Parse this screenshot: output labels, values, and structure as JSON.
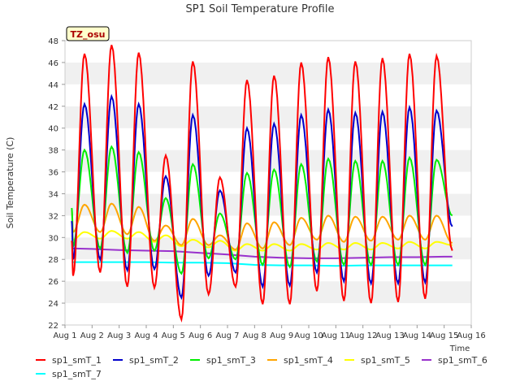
{
  "chart_data": {
    "type": "line",
    "title": "SP1 Soil Temperature Profile",
    "xlabel": "Time",
    "ylabel": "Soil Temperature (C)",
    "ylim": [
      22,
      48
    ],
    "xlim": [
      1,
      16
    ],
    "yticks": [
      22,
      24,
      26,
      28,
      30,
      32,
      34,
      36,
      38,
      40,
      42,
      44,
      46,
      48
    ],
    "xticks": [
      1,
      2,
      3,
      4,
      5,
      6,
      7,
      8,
      9,
      10,
      11,
      12,
      13,
      14,
      15,
      16
    ],
    "xtick_labels": [
      "Aug 1",
      "Aug 2",
      "Aug 3",
      "Aug 4",
      "Aug 5",
      "Aug 6",
      "Aug 7",
      "Aug 8",
      "Aug 9",
      "Aug 10",
      "Aug 11",
      "Aug 12",
      "Aug 13",
      "Aug 14",
      "Aug 15",
      "Aug 16"
    ],
    "annotation": "TZ_osu",
    "legend_position": "bottom",
    "grid": "alternating horizontal bands",
    "series": [
      {
        "name": "sp1_smT_1",
        "color": "#ff0000",
        "min": [
          26.5,
          26.8,
          25.5,
          25.4,
          22.5,
          24.8,
          25.5,
          23.9,
          23.9,
          25.1,
          24.2,
          24.0,
          24.1,
          24.4
        ],
        "max": [
          46.8,
          47.6,
          46.9,
          37.5,
          46.1,
          35.5,
          44.4,
          44.8,
          46.0,
          46.5,
          46.1,
          46.4,
          46.8,
          46.6
        ],
        "start": 29.7,
        "end": 28.8
      },
      {
        "name": "sp1_smT_2",
        "color": "#0000cc",
        "min": [
          28.0,
          28.0,
          27.0,
          27.1,
          24.5,
          26.5,
          26.8,
          25.5,
          25.6,
          26.8,
          26.0,
          25.8,
          25.8,
          25.9
        ],
        "max": [
          42.2,
          42.9,
          42.2,
          35.6,
          41.2,
          34.3,
          40.0,
          40.4,
          41.2,
          41.7,
          41.4,
          41.5,
          41.9,
          41.6
        ],
        "start": 31.5,
        "end": 31.0
      },
      {
        "name": "sp1_smT_3",
        "color": "#00ee00",
        "min": [
          29.2,
          29.0,
          28.6,
          28.8,
          26.7,
          28.1,
          28.0,
          27.5,
          27.3,
          27.8,
          27.5,
          27.5,
          27.5,
          27.5
        ],
        "max": [
          38.0,
          38.3,
          37.8,
          33.6,
          36.7,
          32.2,
          35.9,
          36.2,
          36.7,
          37.2,
          37.0,
          37.0,
          37.3,
          37.1
        ],
        "start": 32.7,
        "end": 32.0
      },
      {
        "name": "sp1_smT_4",
        "color": "#ffa500",
        "min": [
          30.5,
          30.5,
          30.3,
          29.7,
          29.3,
          29.3,
          28.9,
          29.0,
          29.3,
          29.8,
          29.6,
          29.7,
          29.8,
          29.8
        ],
        "max": [
          33.0,
          33.1,
          32.8,
          31.1,
          31.7,
          30.2,
          31.3,
          31.4,
          31.8,
          32.0,
          31.9,
          31.9,
          32.0,
          32.0
        ],
        "start": 32.5,
        "end": 29.5
      },
      {
        "name": "sp1_smT_5",
        "color": "#ffff00",
        "min": [
          29.8,
          29.9,
          29.9,
          29.6,
          29.2,
          29.1,
          28.8,
          28.8,
          28.8,
          28.9,
          28.9,
          28.9,
          29.0,
          29.0
        ],
        "max": [
          30.5,
          30.6,
          30.5,
          30.2,
          29.8,
          29.7,
          29.4,
          29.4,
          29.4,
          29.5,
          29.5,
          29.5,
          29.6,
          29.6
        ],
        "start": 30.2,
        "end": 29.3
      },
      {
        "name": "sp1_smT_6",
        "color": "#9932cc",
        "values": [
          29.0,
          28.95,
          28.85,
          28.8,
          28.75,
          28.6,
          28.45,
          28.25,
          28.15,
          28.1,
          28.1,
          28.15,
          28.2,
          28.2,
          28.25,
          28.25
        ],
        "x": [
          1.25,
          2,
          3,
          4,
          5,
          6,
          7,
          8,
          9,
          10,
          11,
          12,
          13,
          14,
          15,
          15.3
        ]
      },
      {
        "name": "sp1_smT_7",
        "color": "#00ffff",
        "values": [
          27.75,
          27.75,
          27.75,
          27.75,
          27.7,
          27.7,
          27.65,
          27.5,
          27.45,
          27.45,
          27.4,
          27.45,
          27.45,
          27.45,
          27.45,
          27.45
        ],
        "x": [
          1.25,
          2,
          3,
          4,
          5,
          6,
          7,
          8,
          9,
          10,
          11,
          12,
          13,
          14,
          15,
          15.3
        ]
      }
    ]
  }
}
